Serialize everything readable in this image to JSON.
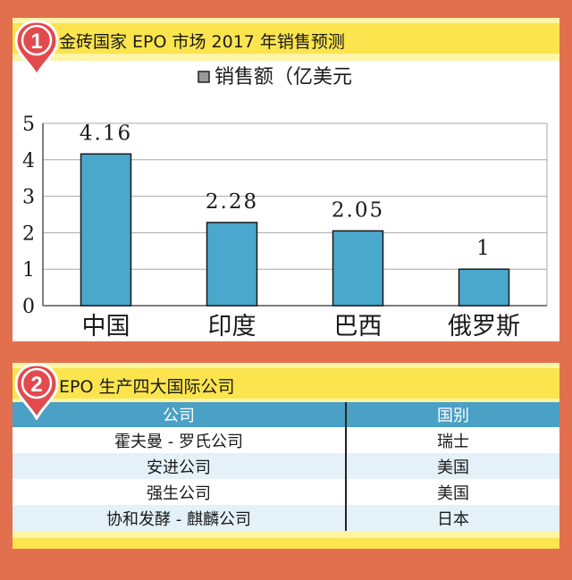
{
  "section1": {
    "number": "1",
    "title": "金砖国家 EPO 市场 2017 年销售预测"
  },
  "chart_data": {
    "type": "bar",
    "title": "",
    "legend": "销售额（亿美元",
    "legend_position": "top-center",
    "categories": [
      "中国",
      "印度",
      "巴西",
      "俄罗斯"
    ],
    "series": [
      {
        "name": "销售额（亿美元",
        "values": [
          4.16,
          2.28,
          2.05,
          1
        ]
      }
    ],
    "data_labels": [
      "4.16",
      "2.28",
      "2.05",
      "1"
    ],
    "y_ticks": [
      "0",
      "1",
      "2",
      "3",
      "4",
      "5"
    ],
    "ylim": [
      0,
      5
    ],
    "grid": true,
    "bar_color": "#4aa8cc"
  },
  "section2": {
    "number": "2",
    "title": "EPO 生产四大国际公司",
    "headers": [
      "公司",
      "国别"
    ],
    "rows": [
      {
        "company": "霍夫曼 - 罗氏公司",
        "country": "瑞士"
      },
      {
        "company": "安进公司",
        "country": "美国"
      },
      {
        "company": "强生公司",
        "country": "美国"
      },
      {
        "company": "协和发酵 - 麒麟公司",
        "country": "日本"
      }
    ]
  },
  "colors": {
    "frame": "#e2704e",
    "panel": "#fdf4a6",
    "title_bar": "#fbe44e",
    "pin": "#e24a4e",
    "table_header": "#4aa0c5",
    "row_alt": "#e4f1f8"
  }
}
